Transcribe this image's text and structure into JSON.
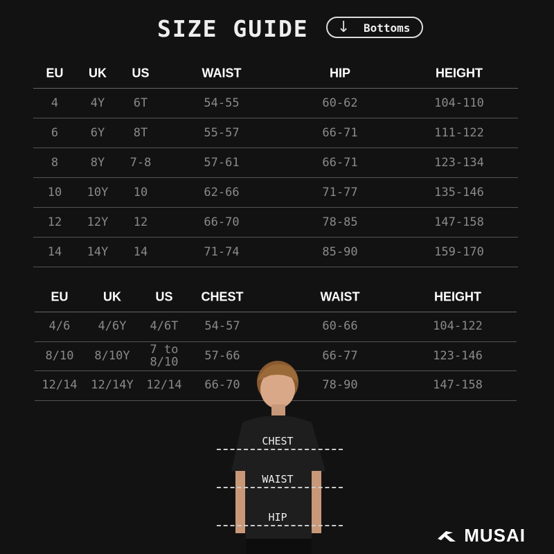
{
  "header": {
    "title": "SIZE GUIDE",
    "pill_icon": "arrow-down-icon",
    "pill_label": "Bottoms"
  },
  "table1": {
    "columns": [
      "EU",
      "UK",
      "US",
      "WAIST",
      "HIP",
      "HEIGHT"
    ],
    "rows": [
      [
        "4",
        "4Y",
        "6T",
        "54-55",
        "60-62",
        "104-110"
      ],
      [
        "6",
        "6Y",
        "8T",
        "55-57",
        "66-71",
        "111-122"
      ],
      [
        "8",
        "8Y",
        "7-8",
        "57-61",
        "66-71",
        "123-134"
      ],
      [
        "10",
        "10Y",
        "10",
        "62-66",
        "71-77",
        "135-146"
      ],
      [
        "12",
        "12Y",
        "12",
        "66-70",
        "78-85",
        "147-158"
      ],
      [
        "14",
        "14Y",
        "14",
        "71-74",
        "85-90",
        "159-170"
      ]
    ]
  },
  "table2": {
    "columns": [
      "EU",
      "UK",
      "US",
      "CHEST",
      "WAIST",
      "HEIGHT"
    ],
    "rows": [
      [
        "4/6",
        "4/6Y",
        "4/6T",
        "54-57",
        "60-66",
        "104-122"
      ],
      [
        "8/10",
        "8/10Y",
        "7 to 8/10",
        "57-66",
        "66-77",
        "123-146"
      ],
      [
        "12/14",
        "12/14Y",
        "12/14",
        "66-70",
        "78-90",
        "147-158"
      ]
    ]
  },
  "figure": {
    "labels": [
      "CHEST",
      "WAIST",
      "HIP"
    ]
  },
  "brand": {
    "name": "MUSAI"
  }
}
